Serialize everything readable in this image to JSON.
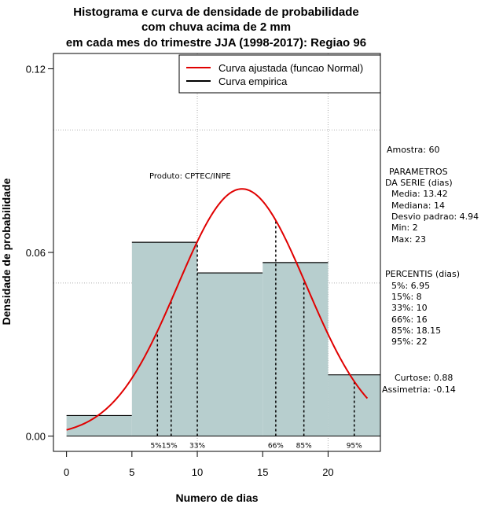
{
  "chart_data": {
    "type": "bar",
    "title_lines": [
      "Histograma e curva de densidade de probabilidade",
      "com chuva acima de 2 mm",
      "em cada mes do trimestre JJA (1998-2017): Regiao 96"
    ],
    "xlabel": "Numero de dias",
    "ylabel": "Densidade de probabilidade",
    "xlim": [
      -1,
      24
    ],
    "ylim": [
      -0.005,
      0.125
    ],
    "xticks": [
      0,
      5,
      10,
      15,
      20
    ],
    "yticks": [
      0.0,
      0.06,
      0.12
    ],
    "ytick_labels": [
      "0.00",
      "0.06",
      "0.12"
    ],
    "gridlines_y": [
      0.05,
      0.1
    ],
    "gridlines_x": [
      10,
      20
    ],
    "bins": [
      {
        "start": 0,
        "end": 5,
        "density": 0.0067
      },
      {
        "start": 5,
        "end": 10,
        "density": 0.0633
      },
      {
        "start": 10,
        "end": 15,
        "density": 0.0533
      },
      {
        "start": 15,
        "end": 20,
        "density": 0.0567
      },
      {
        "start": 20,
        "end": 24,
        "density": 0.02
      }
    ],
    "bar_color": "#b7cece",
    "normal_curve": {
      "mean": 13.42,
      "sd": 4.94,
      "x_range": [
        0,
        23
      ],
      "color": "#e00000"
    },
    "percentile_lines": [
      {
        "label": "5%",
        "x": 6.95
      },
      {
        "label": "15%",
        "x": 8
      },
      {
        "label": "33%",
        "x": 10
      },
      {
        "label": "66%",
        "x": 16
      },
      {
        "label": "85%",
        "x": 18.15
      },
      {
        "label": "95%",
        "x": 22
      }
    ],
    "percentile_marker_labels": [
      "5%15%",
      "33%",
      "66%",
      "85%",
      "95%"
    ],
    "legend": [
      {
        "label": "Curva ajustada (funcao Normal)",
        "color": "#e00000"
      },
      {
        "label": "Curva empirica",
        "color": "#000000"
      }
    ],
    "annotation": "Produto: CPTEC/INPE"
  },
  "stats": {
    "amostra": "Amostra: 60",
    "parametros_title": "PARAMETROS",
    "parametros_subtitle": "DA SERIE (dias)",
    "media": "Media: 13.42",
    "mediana": "Mediana: 14",
    "desvio": "Desvio padrao: 4.94",
    "min": "Min: 2",
    "max": "Max: 23",
    "percentis_title": "PERCENTIS (dias)",
    "p5": "5%: 6.95",
    "p15": "15%: 8",
    "p33": "33%: 10",
    "p66": "66%: 16",
    "p85": "85%: 18.15",
    "p95": "95%: 22",
    "curtose": "Curtose: 0.88",
    "assimetria": "Assimetria: -0.14"
  }
}
